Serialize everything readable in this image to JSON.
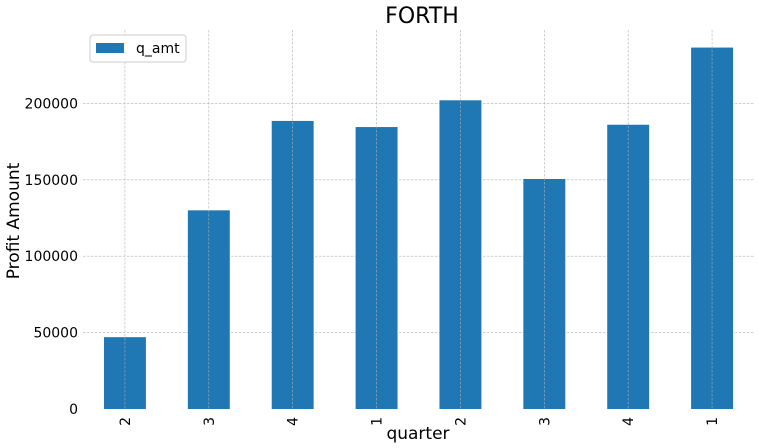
{
  "chart_data": {
    "type": "bar",
    "title": "FORTH",
    "xlabel": "quarter",
    "ylabel": "Profit Amount",
    "categories": [
      "2",
      "3",
      "4",
      "1",
      "2",
      "3",
      "4",
      "1"
    ],
    "series": [
      {
        "name": "q_amt",
        "values": [
          47000,
          130000,
          188500,
          184500,
          202000,
          150500,
          186000,
          236500
        ],
        "color": "#1f77b4"
      }
    ],
    "ylim": [
      0,
      248000
    ],
    "yticks": [
      0,
      50000,
      100000,
      150000,
      200000
    ],
    "ytick_labels": [
      "0",
      "50000",
      "100000",
      "150000",
      "200000"
    ],
    "grid": true,
    "legend": "upper-left",
    "x_tick_rotation": "vertical"
  }
}
